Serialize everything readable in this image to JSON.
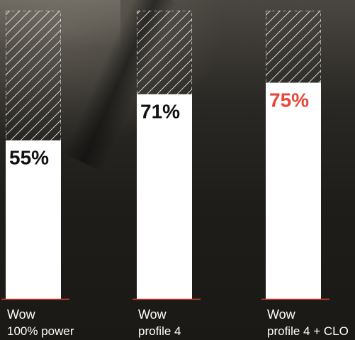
{
  "chart_data": {
    "type": "bar",
    "categories": [
      {
        "name": "Wow",
        "sub": "100% power"
      },
      {
        "name": "Wow",
        "sub": "profile 4"
      },
      {
        "name": "Wow",
        "sub": "profile 4 + CLO"
      }
    ],
    "values": [
      55,
      71,
      75
    ],
    "value_labels": [
      "55%",
      "71%",
      "75%"
    ],
    "ylim": [
      0,
      100
    ],
    "colors": {
      "bar": "#ffffff",
      "remainder_hatch": "#ffffff",
      "value_label_default": "#111111",
      "value_label_highlight": "#e8483c",
      "baseline": "#e0443a",
      "category_label": "#ffffff"
    },
    "highlight_index": 2
  }
}
